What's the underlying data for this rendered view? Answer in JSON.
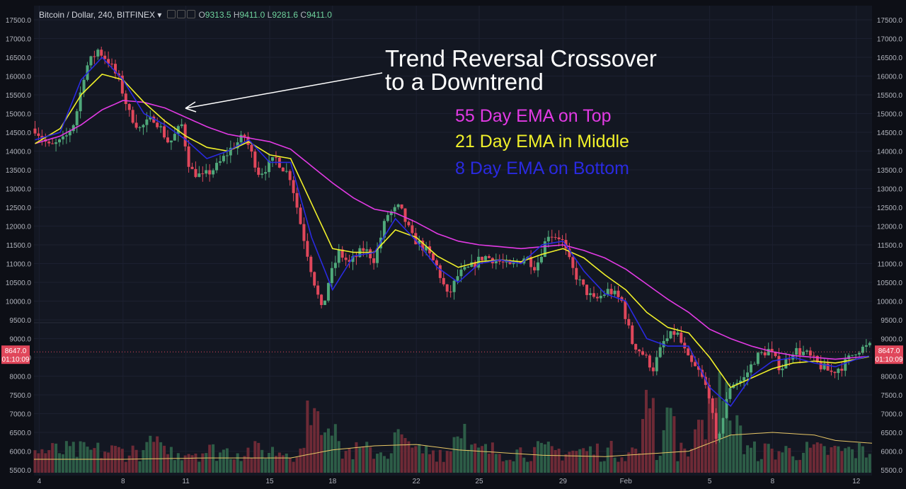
{
  "header": {
    "symbol": "Bitcoin / Dollar, 240, BITFINEX",
    "caret": "▾",
    "o_label": "O",
    "o_value": "9313.5",
    "h_label": "H",
    "h_value": "9411.0",
    "l_label": "L",
    "l_value": "9281.6",
    "c_label": "C",
    "c_value": "9411.0"
  },
  "annotations": {
    "title_line1": "Trend Reversal Crossover",
    "title_line2": "to a Downtrend",
    "ema55": "55 Day EMA on Top",
    "ema21": "21 Day EMA in Middle",
    "ema8": "8 Day EMA on Bottom"
  },
  "colors": {
    "background": "#131722",
    "up": "#4fa87a",
    "down": "#e0475b",
    "ema55": "#e23ae4",
    "ema21": "#f0f02a",
    "ema8": "#2a2ae0",
    "volume_ma": "#e8c766",
    "price_tag": "#e0475b"
  },
  "price_tag": {
    "price": "8647.0",
    "countdown": "01:10:09"
  },
  "chart_data": {
    "type": "candlestick",
    "title": "Bitcoin / Dollar, 240, BITFINEX",
    "y_axis": {
      "min": 5500,
      "max": 17500,
      "ticks": [
        "17500.0",
        "17000.0",
        "16500.0",
        "16000.0",
        "15500.0",
        "15000.0",
        "14500.0",
        "14000.0",
        "13500.0",
        "13000.0",
        "12500.0",
        "12000.0",
        "11500.0",
        "11000.0",
        "10500.0",
        "10000.0",
        "9500.0",
        "9000.0",
        "8500.0",
        "8000.0",
        "7500.0",
        "7000.0",
        "6500.0",
        "6000.0",
        "5500.0"
      ]
    },
    "x_axis": {
      "labels": [
        {
          "label": "4",
          "day": 4
        },
        {
          "label": "8",
          "day": 8
        },
        {
          "label": "11",
          "day": 11
        },
        {
          "label": "15",
          "day": 15
        },
        {
          "label": "18",
          "day": 18
        },
        {
          "label": "22",
          "day": 22
        },
        {
          "label": "25",
          "day": 25
        },
        {
          "label": "29",
          "day": 29
        },
        {
          "label": "Feb",
          "day": 32
        },
        {
          "label": "5",
          "day": 36
        },
        {
          "label": "8",
          "day": 39
        },
        {
          "label": "12",
          "day": 43
        }
      ],
      "day_range": [
        3.75,
        43.75
      ]
    },
    "price_path": [
      [
        3.8,
        14600
      ],
      [
        4.5,
        14100
      ],
      [
        5.2,
        14300
      ],
      [
        5.7,
        14800
      ],
      [
        6.2,
        16200
      ],
      [
        6.8,
        16700
      ],
      [
        7.3,
        16400
      ],
      [
        7.8,
        15900
      ],
      [
        8.3,
        15000
      ],
      [
        8.8,
        14600
      ],
      [
        9.5,
        14900
      ],
      [
        10.2,
        14200
      ],
      [
        10.8,
        14700
      ],
      [
        11.2,
        13500
      ],
      [
        11.8,
        13300
      ],
      [
        12.5,
        13600
      ],
      [
        13.2,
        14100
      ],
      [
        13.8,
        14400
      ],
      [
        14.5,
        13400
      ],
      [
        15.3,
        13800
      ],
      [
        16.0,
        13300
      ],
      [
        16.5,
        12000
      ],
      [
        17.0,
        10800
      ],
      [
        17.5,
        9700
      ],
      [
        17.8,
        10500
      ],
      [
        18.3,
        11300
      ],
      [
        18.8,
        11000
      ],
      [
        19.5,
        11400
      ],
      [
        20.0,
        11100
      ],
      [
        20.6,
        12300
      ],
      [
        21.2,
        12500
      ],
      [
        21.8,
        11700
      ],
      [
        22.4,
        11400
      ],
      [
        23.0,
        10900
      ],
      [
        23.5,
        10100
      ],
      [
        24.0,
        10700
      ],
      [
        24.6,
        10900
      ],
      [
        25.2,
        11200
      ],
      [
        25.8,
        11100
      ],
      [
        26.5,
        10900
      ],
      [
        27.2,
        11200
      ],
      [
        27.7,
        10900
      ],
      [
        28.3,
        11800
      ],
      [
        28.9,
        11700
      ],
      [
        29.4,
        10900
      ],
      [
        29.9,
        10400
      ],
      [
        30.5,
        10000
      ],
      [
        31.2,
        10300
      ],
      [
        31.8,
        10000
      ],
      [
        32.3,
        8900
      ],
      [
        32.8,
        8600
      ],
      [
        33.3,
        8200
      ],
      [
        33.8,
        8900
      ],
      [
        34.4,
        9200
      ],
      [
        35.0,
        8400
      ],
      [
        35.5,
        8100
      ],
      [
        36.0,
        7500
      ],
      [
        36.3,
        6200
      ],
      [
        36.6,
        6800
      ],
      [
        37.0,
        7800
      ],
      [
        37.6,
        7900
      ],
      [
        38.2,
        8500
      ],
      [
        38.8,
        8700
      ],
      [
        39.4,
        8200
      ],
      [
        40.0,
        8700
      ],
      [
        40.6,
        8600
      ],
      [
        41.2,
        8300
      ],
      [
        41.8,
        8100
      ],
      [
        42.4,
        8300
      ],
      [
        43.0,
        8700
      ],
      [
        43.7,
        8800
      ]
    ],
    "ema55_path": [
      [
        3.8,
        14200
      ],
      [
        5,
        14400
      ],
      [
        6,
        14700
      ],
      [
        7,
        15100
      ],
      [
        8,
        15350
      ],
      [
        9,
        15300
      ],
      [
        10,
        15150
      ],
      [
        11,
        14900
      ],
      [
        12,
        14650
      ],
      [
        13,
        14450
      ],
      [
        14,
        14350
      ],
      [
        15,
        14250
      ],
      [
        16,
        14050
      ],
      [
        17,
        13600
      ],
      [
        18,
        13150
      ],
      [
        19,
        12750
      ],
      [
        20,
        12450
      ],
      [
        21,
        12350
      ],
      [
        22,
        12100
      ],
      [
        23,
        11800
      ],
      [
        24,
        11600
      ],
      [
        25,
        11500
      ],
      [
        26,
        11450
      ],
      [
        27,
        11400
      ],
      [
        28,
        11450
      ],
      [
        29,
        11500
      ],
      [
        30,
        11350
      ],
      [
        31,
        11150
      ],
      [
        32,
        10850
      ],
      [
        33,
        10450
      ],
      [
        34,
        10050
      ],
      [
        35,
        9700
      ],
      [
        36,
        9250
      ],
      [
        37,
        9000
      ],
      [
        38,
        8800
      ],
      [
        39,
        8650
      ],
      [
        40,
        8550
      ],
      [
        41,
        8500
      ],
      [
        42,
        8450
      ],
      [
        43,
        8500
      ],
      [
        43.7,
        8530
      ]
    ],
    "ema21_path": [
      [
        3.8,
        14200
      ],
      [
        5,
        14600
      ],
      [
        6,
        15500
      ],
      [
        7,
        16050
      ],
      [
        8,
        15900
      ],
      [
        9,
        15300
      ],
      [
        10,
        14800
      ],
      [
        11,
        14400
      ],
      [
        12,
        14100
      ],
      [
        13,
        14000
      ],
      [
        14,
        14250
      ],
      [
        15,
        13900
      ],
      [
        16,
        13800
      ],
      [
        17,
        12600
      ],
      [
        18,
        11400
      ],
      [
        19,
        11300
      ],
      [
        20,
        11300
      ],
      [
        21,
        11900
      ],
      [
        22,
        11700
      ],
      [
        23,
        11200
      ],
      [
        24,
        10900
      ],
      [
        25,
        11050
      ],
      [
        26,
        11100
      ],
      [
        27,
        11050
      ],
      [
        28,
        11250
      ],
      [
        29,
        11400
      ],
      [
        30,
        11150
      ],
      [
        31,
        10700
      ],
      [
        32,
        10300
      ],
      [
        33,
        9700
      ],
      [
        34,
        9300
      ],
      [
        35,
        9150
      ],
      [
        36,
        8500
      ],
      [
        37,
        7700
      ],
      [
        38,
        7950
      ],
      [
        39,
        8200
      ],
      [
        40,
        8350
      ],
      [
        41,
        8400
      ],
      [
        42,
        8350
      ],
      [
        43,
        8450
      ],
      [
        43.7,
        8530
      ]
    ],
    "ema8_path": [
      [
        3.8,
        14300
      ],
      [
        5,
        14500
      ],
      [
        6,
        15900
      ],
      [
        7,
        16500
      ],
      [
        8,
        15900
      ],
      [
        9,
        15000
      ],
      [
        10,
        14700
      ],
      [
        11,
        14300
      ],
      [
        12,
        13800
      ],
      [
        13,
        14000
      ],
      [
        14,
        14300
      ],
      [
        15,
        13700
      ],
      [
        16,
        13700
      ],
      [
        17,
        11700
      ],
      [
        18,
        10300
      ],
      [
        19,
        11200
      ],
      [
        20,
        11300
      ],
      [
        21,
        12200
      ],
      [
        22,
        11600
      ],
      [
        23,
        10900
      ],
      [
        24,
        10500
      ],
      [
        25,
        11000
      ],
      [
        26,
        11100
      ],
      [
        27,
        11000
      ],
      [
        28,
        11500
      ],
      [
        29,
        11600
      ],
      [
        30,
        10800
      ],
      [
        31,
        10200
      ],
      [
        32,
        10000
      ],
      [
        33,
        9000
      ],
      [
        34,
        8800
      ],
      [
        35,
        8800
      ],
      [
        36,
        7700
      ],
      [
        37,
        7200
      ],
      [
        38,
        8000
      ],
      [
        39,
        8400
      ],
      [
        40,
        8500
      ],
      [
        41,
        8350
      ],
      [
        42,
        8250
      ],
      [
        43,
        8450
      ],
      [
        43.7,
        8550
      ]
    ],
    "volume": {
      "max": 100,
      "ma_path": [
        [
          3.8,
          10
        ],
        [
          8,
          10
        ],
        [
          12,
          11
        ],
        [
          16,
          11
        ],
        [
          18,
          17
        ],
        [
          20,
          20
        ],
        [
          22,
          21
        ],
        [
          24,
          17
        ],
        [
          28,
          13
        ],
        [
          31,
          12
        ],
        [
          33,
          14
        ],
        [
          35,
          16
        ],
        [
          36,
          22
        ],
        [
          37,
          28
        ],
        [
          39,
          30
        ],
        [
          41,
          28
        ],
        [
          42,
          24
        ],
        [
          43.7,
          22
        ]
      ],
      "spikes": [
        [
          9.5,
          28
        ],
        [
          17.0,
          55
        ],
        [
          17.8,
          45
        ],
        [
          21.2,
          35
        ],
        [
          24.0,
          40
        ],
        [
          33.0,
          65
        ],
        [
          34.0,
          50
        ],
        [
          35.5,
          40
        ],
        [
          36.3,
          80
        ],
        [
          36.6,
          70
        ],
        [
          37.2,
          45
        ]
      ]
    }
  }
}
